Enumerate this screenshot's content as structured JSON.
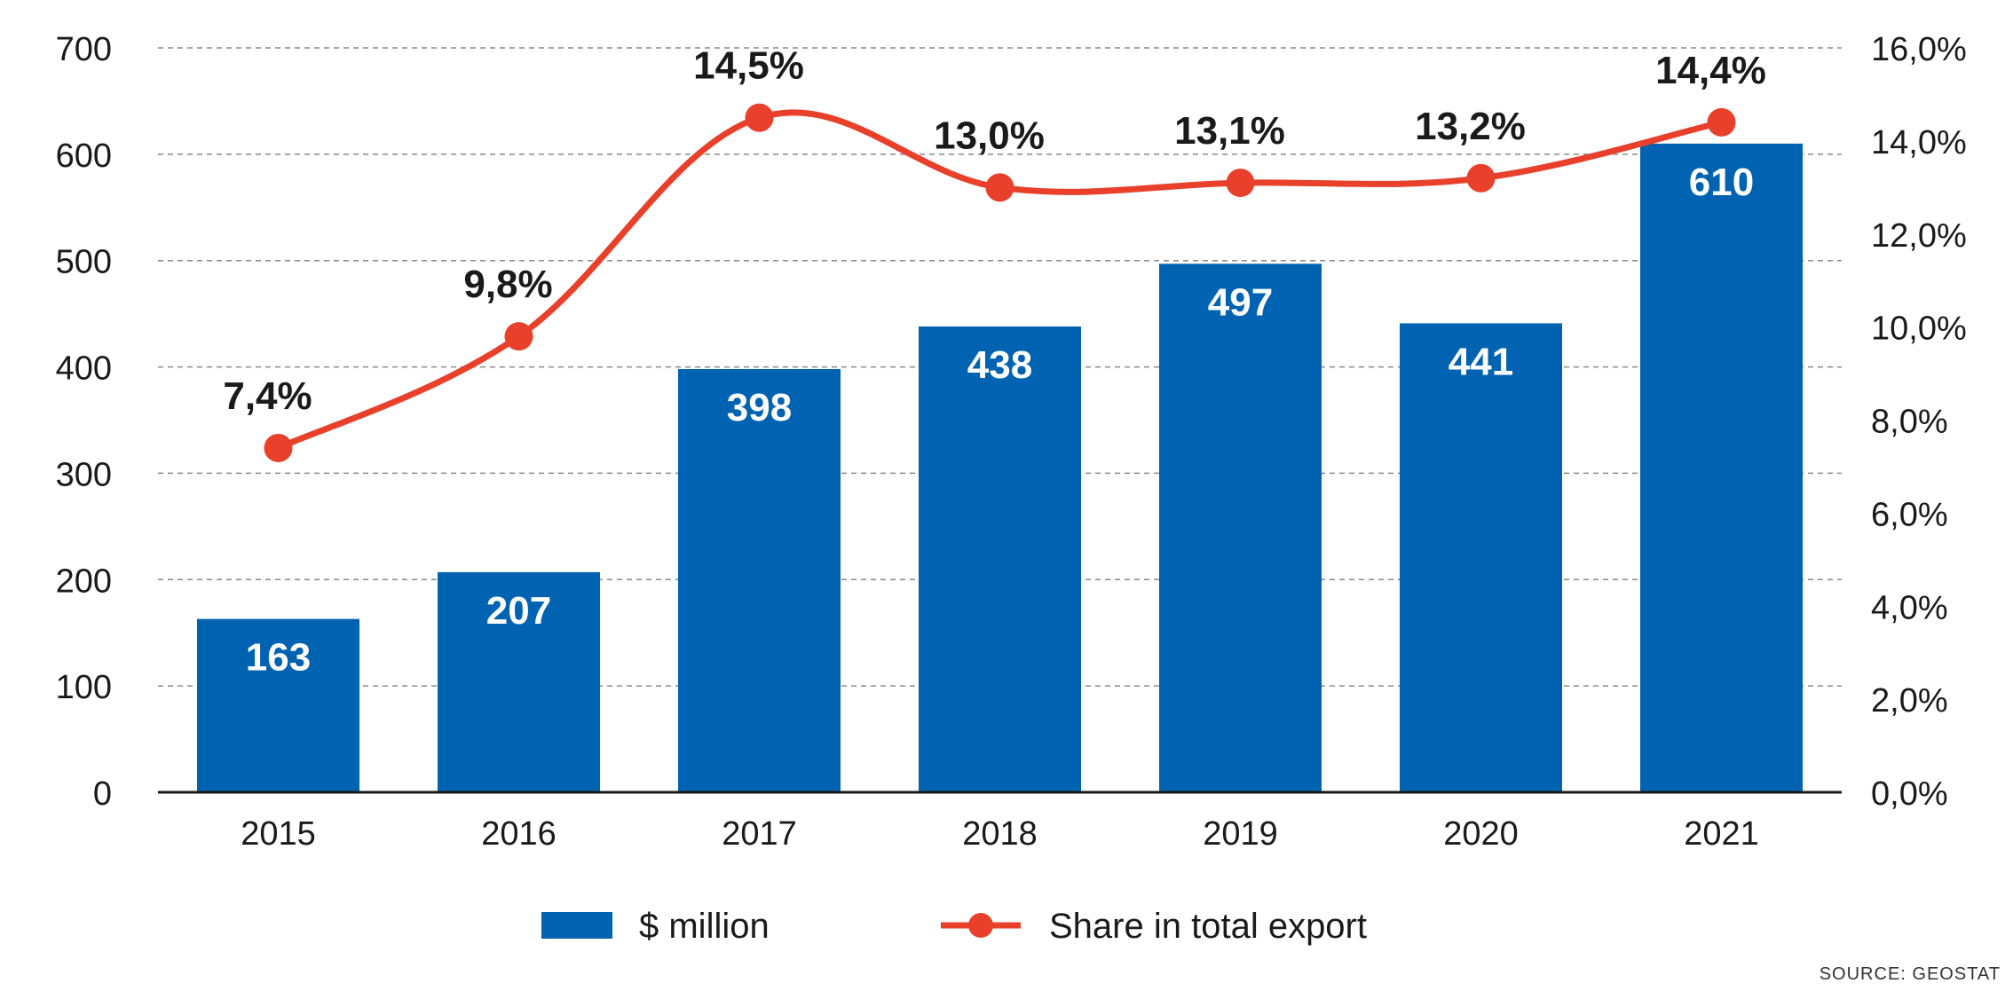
{
  "chart_data": {
    "type": "bar+line",
    "categories": [
      "2015",
      "2016",
      "2017",
      "2018",
      "2019",
      "2020",
      "2021"
    ],
    "series": [
      {
        "name": "$ million",
        "type": "bar",
        "axis": "left",
        "values": [
          163,
          207,
          398,
          438,
          497,
          441,
          610
        ],
        "labels": [
          "163",
          "207",
          "398",
          "438",
          "497",
          "441",
          "610"
        ]
      },
      {
        "name": "Share in total export",
        "type": "line",
        "axis": "right",
        "values": [
          7.4,
          9.8,
          14.5,
          13.0,
          13.1,
          13.2,
          14.4
        ],
        "labels": [
          "7,4%",
          "9,8%",
          "14,5%",
          "13,0%",
          "13,1%",
          "13,2%",
          "14,4%"
        ]
      }
    ],
    "y_left": {
      "ylim": [
        0,
        700
      ],
      "ticks": [
        "0",
        "100",
        "200",
        "300",
        "400",
        "500",
        "600",
        "700"
      ]
    },
    "y_right": {
      "ylim": [
        0,
        16
      ],
      "ticks": [
        "0,0%",
        "2,0%",
        "4,0%",
        "6,0%",
        "8,0%",
        "10,0%",
        "12,0%",
        "14,0%",
        "16,0%"
      ]
    },
    "grid": "dashed-horizontal",
    "legend": "bottom-center",
    "source": "SOURCE: GEOSTAT"
  },
  "colors": {
    "bar": "#0063b1",
    "line": "#e8402a",
    "grid": "#8a8a8a",
    "axis": "#1a1a1a"
  }
}
